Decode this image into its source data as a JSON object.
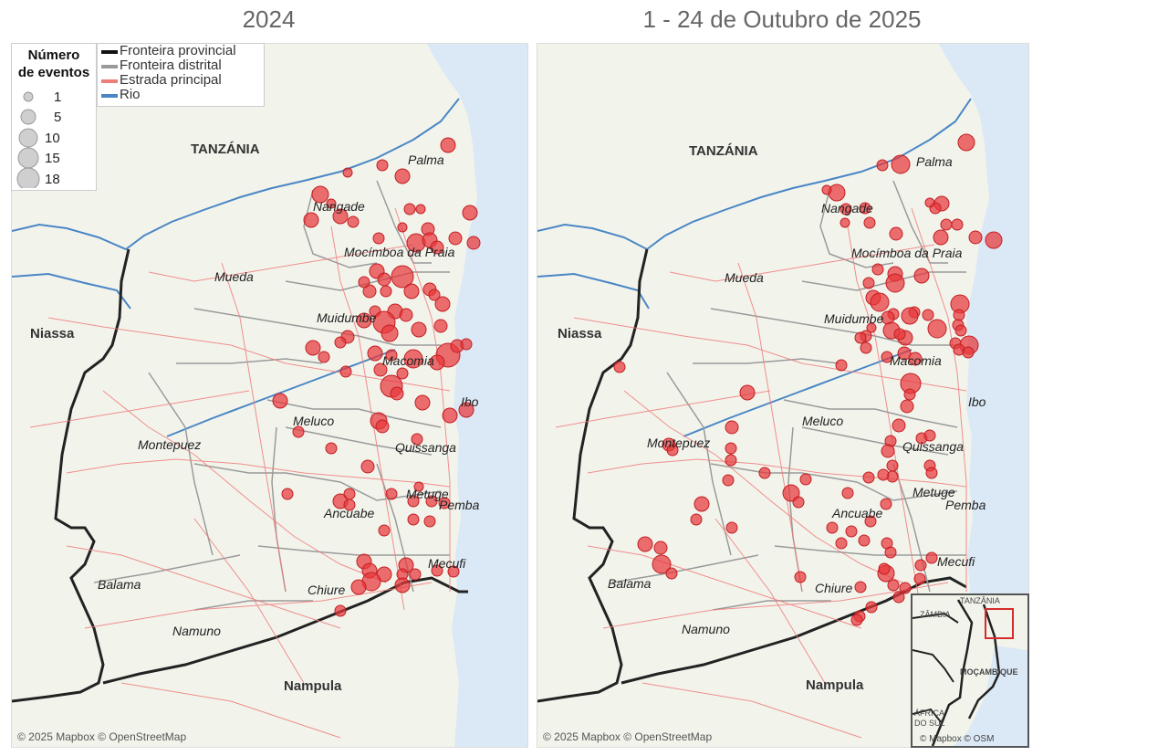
{
  "titles": {
    "left": "2024",
    "right": "1 - 24 de Outubro de 2025"
  },
  "legend": {
    "size_title_1": "Número",
    "size_title_2": "de eventos",
    "sizes": [
      "1",
      "5",
      "10",
      "15",
      "18"
    ],
    "lines": [
      {
        "label": "Fronteira provincial",
        "color": "#111111"
      },
      {
        "label": "Fronteira distrital",
        "color": "#999999"
      },
      {
        "label": "Estrada principal",
        "color": "#f07c7c"
      },
      {
        "label": "Rio",
        "color": "#4a86c5"
      }
    ]
  },
  "places": {
    "tanzania": "TANZÁNIA",
    "niassa": "Niassa",
    "nampula": "Nampula",
    "palma": "Palma",
    "nangade": "Nangade",
    "mocimboa": "Mocímboa da Praia",
    "mueda": "Mueda",
    "muidumbe": "Muidumbe",
    "macomia": "Macomia",
    "ibo": "Ibo",
    "meluco": "Meluco",
    "montepuez": "Montepuez",
    "quissanga": "Quissanga",
    "metuge": "Metuge",
    "pemba": "Pemba",
    "ancuabe": "Ancuabe",
    "mecufi": "Mecufi",
    "balama": "Balama",
    "chiure": "Chiure",
    "namuno": "Namuno"
  },
  "attribution": "© 2025 Mapbox © OpenStreetMap",
  "inset": {
    "tanzania": "TANZÂNIA",
    "zambia": "ZÂMBIA",
    "mocambique": "MOÇAMBIQUE",
    "africa": "ÁFRICA",
    "dosul": "DO SUL",
    "attribution": "© Mapbox © OSM"
  },
  "colors": {
    "event": "#e8383b",
    "land": "#f2f4ec",
    "water": "#dbe8f5"
  },
  "events_2024": [
    [
      490,
      158,
      8
    ],
    [
      418,
      180,
      6
    ],
    [
      380,
      188,
      5
    ],
    [
      440,
      192,
      8
    ],
    [
      350,
      212,
      9
    ],
    [
      362,
      222,
      5
    ],
    [
      340,
      240,
      8
    ],
    [
      372,
      236,
      8
    ],
    [
      386,
      242,
      6
    ],
    [
      448,
      228,
      6
    ],
    [
      460,
      228,
      5
    ],
    [
      468,
      250,
      7
    ],
    [
      440,
      248,
      5
    ],
    [
      514,
      232,
      8
    ],
    [
      518,
      265,
      7
    ],
    [
      498,
      260,
      7
    ],
    [
      414,
      260,
      6
    ],
    [
      455,
      265,
      10
    ],
    [
      470,
      262,
      8
    ],
    [
      478,
      270,
      7
    ],
    [
      440,
      302,
      12
    ],
    [
      412,
      296,
      8
    ],
    [
      420,
      305,
      7
    ],
    [
      404,
      318,
      7
    ],
    [
      398,
      308,
      6
    ],
    [
      422,
      318,
      6
    ],
    [
      450,
      318,
      8
    ],
    [
      470,
      316,
      7
    ],
    [
      475,
      322,
      6
    ],
    [
      484,
      332,
      8
    ],
    [
      410,
      340,
      6
    ],
    [
      432,
      340,
      8
    ],
    [
      444,
      344,
      7
    ],
    [
      398,
      350,
      8
    ],
    [
      420,
      352,
      12
    ],
    [
      426,
      364,
      9
    ],
    [
      458,
      360,
      8
    ],
    [
      482,
      356,
      7
    ],
    [
      380,
      368,
      7
    ],
    [
      372,
      374,
      6
    ],
    [
      342,
      380,
      8
    ],
    [
      354,
      390,
      6
    ],
    [
      410,
      386,
      8
    ],
    [
      428,
      388,
      6
    ],
    [
      452,
      392,
      10
    ],
    [
      490,
      388,
      13
    ],
    [
      500,
      378,
      7
    ],
    [
      510,
      376,
      6
    ],
    [
      478,
      396,
      8
    ],
    [
      416,
      404,
      7
    ],
    [
      378,
      406,
      6
    ],
    [
      440,
      408,
      6
    ],
    [
      428,
      422,
      12
    ],
    [
      434,
      430,
      7
    ],
    [
      306,
      438,
      8
    ],
    [
      462,
      440,
      8
    ],
    [
      510,
      448,
      8
    ],
    [
      492,
      454,
      8
    ],
    [
      414,
      460,
      9
    ],
    [
      418,
      466,
      7
    ],
    [
      326,
      472,
      6
    ],
    [
      362,
      490,
      6
    ],
    [
      456,
      480,
      6
    ],
    [
      402,
      510,
      7
    ],
    [
      314,
      540,
      6
    ],
    [
      372,
      548,
      8
    ],
    [
      382,
      540,
      6
    ],
    [
      382,
      552,
      6
    ],
    [
      428,
      540,
      6
    ],
    [
      458,
      532,
      5
    ],
    [
      452,
      548,
      6
    ],
    [
      472,
      548,
      6
    ],
    [
      486,
      550,
      6
    ],
    [
      452,
      568,
      6
    ],
    [
      470,
      570,
      6
    ],
    [
      420,
      580,
      6
    ],
    [
      398,
      614,
      8
    ],
    [
      404,
      624,
      8
    ],
    [
      420,
      628,
      8
    ],
    [
      406,
      636,
      10
    ],
    [
      444,
      618,
      8
    ],
    [
      440,
      628,
      6
    ],
    [
      454,
      628,
      6
    ],
    [
      392,
      642,
      8
    ],
    [
      372,
      668,
      6
    ],
    [
      440,
      640,
      8
    ],
    [
      478,
      624,
      6
    ],
    [
      496,
      625,
      6
    ]
  ],
  "events_2025": [
    [
      470,
      108,
      9
    ],
    [
      398,
      132,
      10
    ],
    [
      378,
      133,
      6
    ],
    [
      328,
      163,
      9
    ],
    [
      317,
      160,
      5
    ],
    [
      338,
      181,
      6
    ],
    [
      359,
      180,
      6
    ],
    [
      364,
      196,
      6
    ],
    [
      337,
      196,
      5
    ],
    [
      443,
      175,
      8
    ],
    [
      436,
      180,
      6
    ],
    [
      430,
      174,
      5
    ],
    [
      448,
      198,
      6
    ],
    [
      460,
      198,
      6
    ],
    [
      442,
      212,
      8
    ],
    [
      393,
      208,
      7
    ],
    [
      480,
      212,
      7
    ],
    [
      500,
      215,
      9
    ],
    [
      373,
      247,
      6
    ],
    [
      392,
      252,
      8
    ],
    [
      392,
      262,
      10
    ],
    [
      363,
      262,
      6
    ],
    [
      421,
      254,
      8
    ],
    [
      368,
      278,
      8
    ],
    [
      375,
      283,
      10
    ],
    [
      390,
      296,
      6
    ],
    [
      413,
      294,
      6
    ],
    [
      428,
      297,
      6
    ],
    [
      408,
      298,
      9
    ],
    [
      463,
      285,
      10
    ],
    [
      462,
      297,
      6
    ],
    [
      366,
      311,
      5
    ],
    [
      384,
      300,
      7
    ],
    [
      388,
      314,
      9
    ],
    [
      403,
      322,
      8
    ],
    [
      397,
      318,
      6
    ],
    [
      438,
      312,
      10
    ],
    [
      458,
      328,
      6
    ],
    [
      461,
      308,
      6
    ],
    [
      464,
      314,
      6
    ],
    [
      360,
      320,
      6
    ],
    [
      360,
      333,
      6
    ],
    [
      473,
      330,
      10
    ],
    [
      462,
      335,
      6
    ],
    [
      472,
      338,
      6
    ],
    [
      402,
      339,
      7
    ],
    [
      383,
      343,
      6
    ],
    [
      414,
      345,
      7
    ],
    [
      333,
      352,
      6
    ],
    [
      354,
      322,
      6
    ],
    [
      409,
      372,
      11
    ],
    [
      408,
      384,
      6
    ],
    [
      405,
      397,
      7
    ],
    [
      396,
      418,
      7
    ],
    [
      387,
      435,
      6
    ],
    [
      384,
      446,
      7
    ],
    [
      421,
      432,
      6
    ],
    [
      430,
      429,
      6
    ],
    [
      389,
      462,
      6
    ],
    [
      389,
      474,
      6
    ],
    [
      430,
      462,
      6
    ],
    [
      432,
      470,
      6
    ],
    [
      379,
      472,
      6
    ],
    [
      363,
      475,
      6
    ],
    [
      340,
      492,
      6
    ],
    [
      382,
      504,
      6
    ],
    [
      323,
      530,
      6
    ],
    [
      344,
      534,
      6
    ],
    [
      333,
      547,
      6
    ],
    [
      365,
      523,
      6
    ],
    [
      358,
      544,
      6
    ],
    [
      383,
      547,
      6
    ],
    [
      387,
      557,
      6
    ],
    [
      278,
      492,
      9
    ],
    [
      286,
      502,
      6
    ],
    [
      294,
      477,
      6
    ],
    [
      230,
      382,
      8
    ],
    [
      213,
      420,
      7
    ],
    [
      90,
      354,
      6
    ],
    [
      144,
      439,
      7
    ],
    [
      148,
      445,
      6
    ],
    [
      212,
      443,
      6
    ],
    [
      212,
      456,
      6
    ],
    [
      209,
      478,
      6
    ],
    [
      249,
      470,
      6
    ],
    [
      180,
      504,
      8
    ],
    [
      174,
      521,
      6
    ],
    [
      213,
      530,
      6
    ],
    [
      135,
      552,
      7
    ],
    [
      118,
      548,
      8
    ],
    [
      136,
      570,
      10
    ],
    [
      147,
      580,
      6
    ],
    [
      288,
      584,
      6
    ],
    [
      354,
      595,
      6
    ],
    [
      382,
      580,
      9
    ],
    [
      390,
      593,
      6
    ],
    [
      403,
      596,
      6
    ],
    [
      419,
      586,
      6
    ],
    [
      396,
      606,
      6
    ],
    [
      420,
      571,
      6
    ],
    [
      432,
      563,
      6
    ],
    [
      380,
      575,
      6
    ],
    [
      366,
      617,
      6
    ],
    [
      353,
      627,
      6
    ],
    [
      350,
      631,
      6
    ]
  ]
}
